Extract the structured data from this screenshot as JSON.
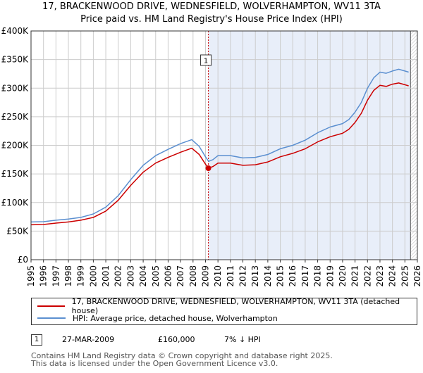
{
  "header": {
    "title_line1": "17, BRACKENWOOD DRIVE, WEDNESFIELD, WOLVERHAMPTON, WV11 3TA",
    "title_line2": "Price paid vs. HM Land Registry's House Price Index (HPI)"
  },
  "colors": {
    "property": "#cc0000",
    "hpi": "#5b8fd0",
    "shade": "#e8eef9",
    "grid": "#cccccc",
    "vline": "#cc0000"
  },
  "chart_data": {
    "type": "line",
    "title": "17, BRACKENWOOD DRIVE, WEDNESFIELD, WOLVERHAMPTON, WV11 3TA — Price paid vs. HM Land Registry's House Price Index (HPI)",
    "xlim": [
      1995,
      2026
    ],
    "ylim": [
      0,
      400000
    ],
    "y_ticks": [
      0,
      50000,
      100000,
      150000,
      200000,
      250000,
      300000,
      350000,
      400000
    ],
    "y_tick_labels": [
      "£0",
      "£50K",
      "£100K",
      "£150K",
      "£200K",
      "£250K",
      "£300K",
      "£350K",
      "£400K"
    ],
    "x_ticks": [
      1995,
      1996,
      1997,
      1998,
      1999,
      2000,
      2001,
      2002,
      2003,
      2004,
      2005,
      2006,
      2007,
      2008,
      2009,
      2010,
      2011,
      2012,
      2013,
      2014,
      2015,
      2016,
      2017,
      2018,
      2019,
      2020,
      2021,
      2022,
      2023,
      2024,
      2025,
      2026
    ],
    "x_tick_labels": [
      "1995",
      "1996",
      "1997",
      "1998",
      "1999",
      "2000",
      "2001",
      "2002",
      "2003",
      "2004",
      "2005",
      "2006",
      "2007",
      "2008",
      "2009",
      "2010",
      "2011",
      "2012",
      "2013",
      "2014",
      "2015",
      "2016",
      "2017",
      "2018",
      "2019",
      "2020",
      "2021",
      "2022",
      "2023",
      "2024",
      "2025",
      "2026"
    ],
    "shaded_from": 2009.23,
    "future_from": 2025.45,
    "sale_marker": {
      "label": "1",
      "x": 2009.23,
      "value": 160000
    },
    "series": [
      {
        "name": "hpi",
        "label": "HPI: Average price, detached house, Wolverhampton",
        "x": [
          1995,
          1996,
          1997,
          1998,
          1999,
          2000,
          2001,
          2002,
          2003,
          2004,
          2005,
          2006,
          2007,
          2007.9,
          2008.5,
          2009,
          2009.25,
          2009.6,
          2010,
          2011,
          2012,
          2013,
          2014,
          2015,
          2016,
          2017,
          2018,
          2019,
          2020,
          2020.5,
          2021,
          2021.5,
          2022,
          2022.5,
          2023,
          2023.5,
          2024,
          2024.5,
          2025,
          2025.3
        ],
        "values": [
          66000,
          66500,
          69000,
          71000,
          74000,
          80000,
          92000,
          112000,
          140000,
          165000,
          182000,
          193000,
          203000,
          210000,
          198000,
          180000,
          172000,
          175000,
          182000,
          182000,
          178000,
          179000,
          184000,
          194000,
          200000,
          209000,
          222000,
          232000,
          238000,
          245000,
          258000,
          275000,
          300000,
          318000,
          328000,
          326000,
          330000,
          333000,
          330000,
          328000
        ]
      },
      {
        "name": "property",
        "label": "17, BRACKENWOOD DRIVE, WEDNESFIELD, WOLVERHAMPTON, WV11 3TA (detached house)",
        "x": [
          1995,
          1996,
          1997,
          1998,
          1999,
          2000,
          2001,
          2002,
          2003,
          2004,
          2005,
          2006,
          2007,
          2007.9,
          2008.5,
          2009,
          2009.25,
          2009.6,
          2010,
          2011,
          2012,
          2013,
          2014,
          2015,
          2016,
          2017,
          2018,
          2019,
          2020,
          2020.5,
          2021,
          2021.5,
          2022,
          2022.5,
          2023,
          2023.5,
          2024,
          2024.5,
          2025,
          2025.3
        ],
        "values": [
          61000,
          61500,
          64000,
          66000,
          69000,
          74000,
          85000,
          104000,
          130000,
          153000,
          169000,
          179000,
          188000,
          195000,
          184000,
          167000,
          160000,
          163000,
          169000,
          169000,
          165000,
          166000,
          171000,
          180000,
          186000,
          194000,
          206000,
          215000,
          221000,
          228000,
          240000,
          256000,
          279000,
          296000,
          305000,
          303000,
          307000,
          309000,
          306000,
          304000
        ]
      }
    ]
  },
  "legend": {
    "items": [
      {
        "label": "17, BRACKENWOOD DRIVE, WEDNESFIELD, WOLVERHAMPTON, WV11 3TA (detached house)"
      },
      {
        "label": "HPI: Average price, detached house, Wolverhampton"
      }
    ]
  },
  "sales_table": {
    "rows": [
      {
        "num": "1",
        "date": "27-MAR-2009",
        "price": "£160,000",
        "delta": "7% ↓ HPI"
      }
    ]
  },
  "footer": {
    "line1": "Contains HM Land Registry data © Crown copyright and database right 2025.",
    "line2": "This data is licensed under the Open Government Licence v3.0."
  }
}
